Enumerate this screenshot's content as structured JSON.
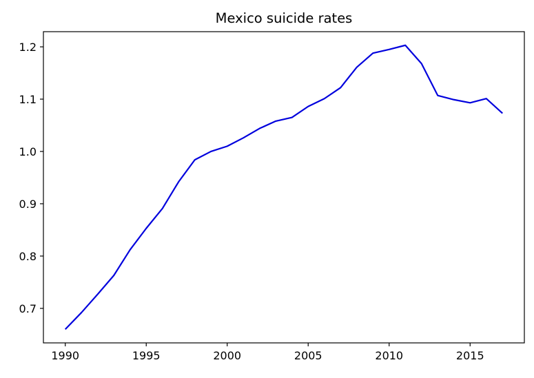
{
  "chart_data": {
    "type": "line",
    "title": "Mexico suicide rates",
    "xlabel": "",
    "ylabel": "",
    "xlim": [
      1988.65,
      2018.35
    ],
    "ylim": [
      0.634,
      1.229
    ],
    "xticks": [
      1990,
      1995,
      2000,
      2005,
      2010,
      2015
    ],
    "yticks": [
      0.7,
      0.8,
      0.9,
      1.0,
      1.1,
      1.2
    ],
    "ytick_labels": [
      "0.7",
      "0.8",
      "0.9",
      "1.0",
      "1.1",
      "1.2"
    ],
    "grid": false,
    "line_color": "#0000dd",
    "series": [
      {
        "x": [
          1990,
          1991,
          1992,
          1993,
          1994,
          1995,
          1996,
          1997,
          1998,
          1999,
          2000,
          2001,
          2002,
          2003,
          2004,
          2005,
          2006,
          2007,
          2008,
          2009,
          2010,
          2011,
          2012,
          2013,
          2014,
          2015,
          2016,
          2017
        ],
        "values": [
          0.66,
          0.692,
          0.727,
          0.763,
          0.812,
          0.853,
          0.891,
          0.942,
          0.984,
          1.0,
          1.01,
          1.026,
          1.044,
          1.058,
          1.065,
          1.086,
          1.101,
          1.122,
          1.161,
          1.188,
          1.195,
          1.203,
          1.168,
          1.107,
          1.099,
          1.093,
          1.101,
          1.073
        ]
      }
    ]
  }
}
